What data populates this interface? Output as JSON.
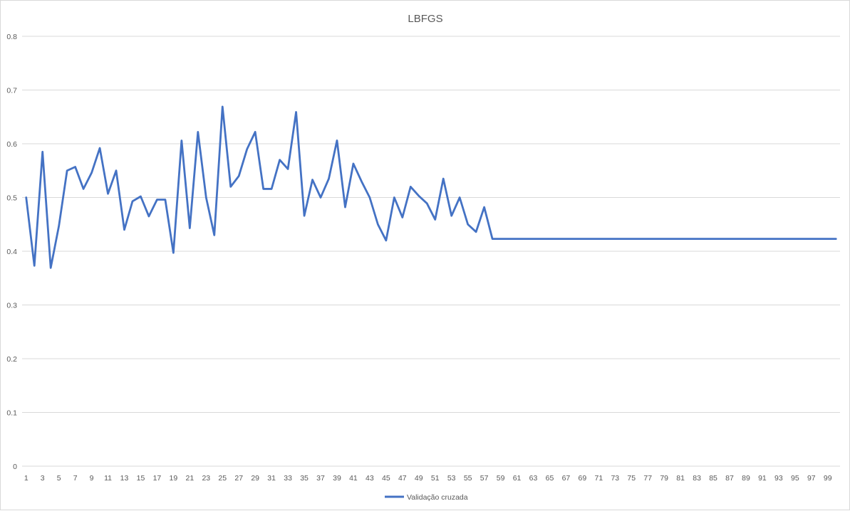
{
  "chart_data": {
    "type": "line",
    "title": "LBFGS",
    "xlabel": "",
    "ylabel": "",
    "ylim": [
      0,
      0.8
    ],
    "yticks": [
      "0",
      "0.1",
      "0.2",
      "0.3",
      "0.4",
      "0.5",
      "0.6",
      "0.7",
      "0.8"
    ],
    "x": [
      1,
      2,
      3,
      4,
      5,
      6,
      7,
      8,
      9,
      10,
      11,
      12,
      13,
      14,
      15,
      16,
      17,
      18,
      19,
      20,
      21,
      22,
      23,
      24,
      25,
      26,
      27,
      28,
      29,
      30,
      31,
      32,
      33,
      34,
      35,
      36,
      37,
      38,
      39,
      40,
      41,
      42,
      43,
      44,
      45,
      46,
      47,
      48,
      49,
      50,
      51,
      52,
      53,
      54,
      55,
      56,
      57,
      58,
      59,
      60,
      61,
      62,
      63,
      64,
      65,
      66,
      67,
      68,
      69,
      70,
      71,
      72,
      73,
      74,
      75,
      76,
      77,
      78,
      79,
      80,
      81,
      82,
      83,
      84,
      85,
      86,
      87,
      88,
      89,
      90,
      91,
      92,
      93,
      94,
      95,
      96,
      97,
      98,
      99,
      100
    ],
    "xtick_labels": [
      "1",
      "3",
      "5",
      "7",
      "9",
      "11",
      "13",
      "15",
      "17",
      "19",
      "21",
      "23",
      "25",
      "27",
      "29",
      "31",
      "33",
      "35",
      "37",
      "39",
      "41",
      "43",
      "45",
      "47",
      "49",
      "51",
      "53",
      "55",
      "57",
      "59",
      "61",
      "63",
      "65",
      "67",
      "69",
      "71",
      "73",
      "75",
      "77",
      "79",
      "81",
      "83",
      "85",
      "87",
      "89",
      "91",
      "93",
      "95",
      "97",
      "99"
    ],
    "series": [
      {
        "name": "Validação cruzada",
        "color": "#4472c4",
        "values": [
          0.5,
          0.373,
          0.585,
          0.369,
          0.447,
          0.55,
          0.557,
          0.516,
          0.546,
          0.592,
          0.507,
          0.55,
          0.44,
          0.493,
          0.502,
          0.465,
          0.496,
          0.496,
          0.397,
          0.606,
          0.443,
          0.622,
          0.5,
          0.43,
          0.669,
          0.52,
          0.54,
          0.59,
          0.622,
          0.516,
          0.516,
          0.57,
          0.553,
          0.659,
          0.466,
          0.533,
          0.5,
          0.535,
          0.606,
          0.482,
          0.563,
          0.53,
          0.5,
          0.45,
          0.42,
          0.5,
          0.463,
          0.52,
          0.503,
          0.489,
          0.459,
          0.535,
          0.466,
          0.5,
          0.45,
          0.436,
          0.482,
          0.423,
          0.423,
          0.423,
          0.423,
          0.423,
          0.423,
          0.423,
          0.423,
          0.423,
          0.423,
          0.423,
          0.423,
          0.423,
          0.423,
          0.423,
          0.423,
          0.423,
          0.423,
          0.423,
          0.423,
          0.423,
          0.423,
          0.423,
          0.423,
          0.423,
          0.423,
          0.423,
          0.423,
          0.423,
          0.423,
          0.423,
          0.423,
          0.423,
          0.423,
          0.423,
          0.423,
          0.423,
          0.423,
          0.423,
          0.423,
          0.423,
          0.423,
          0.423
        ]
      }
    ],
    "grid": true,
    "legend": "bottom"
  }
}
